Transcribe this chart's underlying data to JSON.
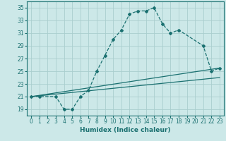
{
  "xlabel": "Humidex (Indice chaleur)",
  "bg_color": "#cce8e8",
  "grid_color": "#aacece",
  "line_color": "#1a7070",
  "xlim": [
    -0.5,
    23.5
  ],
  "ylim": [
    18,
    36
  ],
  "yticks": [
    19,
    21,
    23,
    25,
    27,
    29,
    31,
    33,
    35
  ],
  "xticks": [
    0,
    1,
    2,
    3,
    4,
    5,
    6,
    7,
    8,
    9,
    10,
    11,
    12,
    13,
    14,
    15,
    16,
    17,
    18,
    19,
    20,
    21,
    22,
    23
  ],
  "line1_x": [
    0,
    1,
    3,
    4,
    5,
    6,
    7,
    8,
    9,
    10,
    11,
    12,
    13,
    14,
    15,
    16,
    17,
    18,
    21,
    22,
    23
  ],
  "line1_y": [
    21,
    21,
    21,
    19,
    19,
    21,
    22,
    25,
    27.5,
    30,
    31.5,
    34,
    34.5,
    34.5,
    35,
    32.5,
    31,
    31.5,
    29,
    25,
    25.5
  ],
  "line2_x": [
    0,
    23
  ],
  "line2_y": [
    21,
    25.5
  ],
  "line3_x": [
    0,
    23
  ],
  "line3_y": [
    21,
    24
  ],
  "tick_fontsize": 5.5,
  "xlabel_fontsize": 6.5
}
